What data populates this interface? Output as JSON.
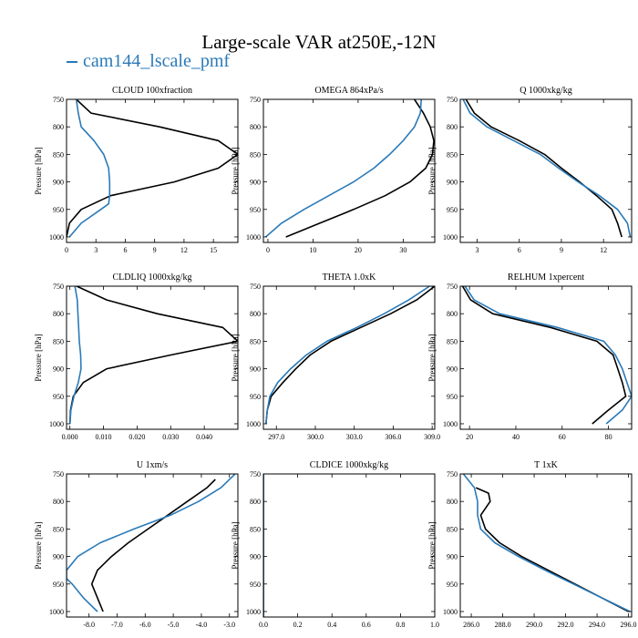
{
  "title": "Large-scale VAR at250E,-12N",
  "legend": {
    "label": "cam144_lscale_pmf",
    "color": "#2a7ab8"
  },
  "colors": {
    "series_black": "#000000",
    "series_blue": "#2a7ab8",
    "axis": "#000000"
  },
  "chart_data": [
    {
      "type": "line",
      "title": "CLOUD  100xfraction",
      "ylabel": "Pressure [hPa]",
      "xlim": [
        0,
        17.5
      ],
      "ylim": [
        1010,
        750
      ],
      "xticks": [
        0,
        3,
        6,
        9,
        12,
        15
      ],
      "xtick_labels": [
        "0",
        "3",
        "6",
        "9",
        "12",
        "15"
      ],
      "yticks": [
        750,
        800,
        850,
        900,
        950,
        1000
      ],
      "ytick_labels": [
        "750",
        "800",
        "850",
        "900",
        "950",
        "1000"
      ],
      "series": [
        {
          "color": "black",
          "p": [
            750,
            775,
            800,
            825,
            850,
            875,
            900,
            925,
            950,
            975,
            1000
          ],
          "x": [
            1.0,
            2.5,
            9.5,
            15.5,
            17.5,
            15.5,
            11.0,
            4.5,
            1.5,
            0.3,
            0.0
          ]
        },
        {
          "color": "blue",
          "p": [
            750,
            775,
            800,
            825,
            850,
            875,
            900,
            925,
            940,
            950,
            975,
            1000
          ],
          "x": [
            1.0,
            1.2,
            1.5,
            2.8,
            3.8,
            4.3,
            4.4,
            4.4,
            4.3,
            3.5,
            1.5,
            0.3
          ]
        }
      ]
    },
    {
      "type": "line",
      "title": "OMEGA  864xPa/s",
      "ylabel": "Pressure [hPa]",
      "xlim": [
        -1,
        37
      ],
      "ylim": [
        1010,
        750
      ],
      "xticks": [
        0,
        10,
        20,
        30
      ],
      "xtick_labels": [
        "0",
        "10",
        "20",
        "30"
      ],
      "yticks": [
        750,
        800,
        850,
        900,
        950,
        1000
      ],
      "ytick_labels": [
        "750",
        "800",
        "850",
        "900",
        "950",
        "1000"
      ],
      "series": [
        {
          "color": "black",
          "p": [
            750,
            775,
            800,
            825,
            850,
            875,
            900,
            925,
            950,
            975,
            1000
          ],
          "x": [
            32.5,
            34.5,
            36.0,
            36.8,
            36.5,
            35.0,
            31.5,
            26.0,
            19.0,
            11.5,
            4.0
          ]
        },
        {
          "color": "blue",
          "p": [
            750,
            775,
            800,
            825,
            850,
            875,
            900,
            925,
            950,
            975,
            1000
          ],
          "x": [
            34.0,
            33.8,
            32.5,
            30.0,
            27.0,
            23.5,
            19.0,
            13.5,
            8.0,
            3.0,
            -0.5
          ]
        }
      ]
    },
    {
      "type": "line",
      "title": "Q  1000xkg/kg",
      "ylabel": "Pressure [hPa]",
      "xlim": [
        1.8,
        14
      ],
      "ylim": [
        1010,
        750
      ],
      "xticks": [
        3,
        6,
        9,
        12
      ],
      "xtick_labels": [
        "3",
        "6",
        "9",
        "12"
      ],
      "yticks": [
        750,
        800,
        850,
        900,
        950,
        1000
      ],
      "ytick_labels": [
        "750",
        "800",
        "850",
        "900",
        "950",
        "1000"
      ],
      "series": [
        {
          "color": "black",
          "p": [
            750,
            775,
            800,
            825,
            850,
            875,
            900,
            925,
            950,
            975,
            1000
          ],
          "x": [
            2.2,
            2.8,
            4.0,
            6.0,
            7.8,
            9.0,
            10.3,
            11.5,
            12.6,
            13.0,
            13.3
          ]
        },
        {
          "color": "blue",
          "p": [
            750,
            775,
            800,
            825,
            850,
            875,
            900,
            925,
            950,
            975,
            1000
          ],
          "x": [
            2.0,
            2.5,
            3.7,
            5.6,
            7.5,
            8.8,
            10.2,
            11.7,
            13.0,
            13.7,
            13.9
          ]
        }
      ]
    },
    {
      "type": "line",
      "title": "CLDLIQ  1000xkg/kg",
      "ylabel": "Pressure [hPa]",
      "xlim": [
        -0.001,
        0.05
      ],
      "ylim": [
        1010,
        750
      ],
      "xticks": [
        0,
        0.01,
        0.02,
        0.03,
        0.04
      ],
      "xtick_labels": [
        "0.000",
        "0.010",
        "0.020",
        "0.030",
        "0.040"
      ],
      "yticks": [
        750,
        800,
        850,
        900,
        950,
        1000
      ],
      "ytick_labels": [
        "750",
        "800",
        "850",
        "900",
        "950",
        "1000"
      ],
      "series": [
        {
          "color": "black",
          "p": [
            750,
            775,
            800,
            825,
            850,
            875,
            900,
            925,
            950,
            975,
            1000
          ],
          "x": [
            0.002,
            0.011,
            0.026,
            0.0455,
            0.05,
            0.03,
            0.011,
            0.004,
            0.001,
            0.0002,
            0.0
          ]
        },
        {
          "color": "blue",
          "p": [
            750,
            775,
            800,
            825,
            850,
            875,
            900,
            925,
            950,
            975,
            1000
          ],
          "x": [
            0.0015,
            0.0022,
            0.0024,
            0.0026,
            0.0028,
            0.0032,
            0.0033,
            0.0025,
            0.0012,
            0.0003,
            0.0
          ]
        }
      ]
    },
    {
      "type": "line",
      "title": "THETA  1.0xK",
      "ylabel": "Pressure [hPa]",
      "xlim": [
        296,
        309.2
      ],
      "ylim": [
        1010,
        750
      ],
      "xticks": [
        297,
        300,
        303,
        306,
        309
      ],
      "xtick_labels": [
        "297.0",
        "300.0",
        "303.0",
        "306.0",
        "309.0"
      ],
      "yticks": [
        750,
        800,
        850,
        900,
        950,
        1000
      ],
      "ytick_labels": [
        "750",
        "800",
        "850",
        "900",
        "950",
        "1000"
      ],
      "series": [
        {
          "color": "black",
          "p": [
            750,
            775,
            800,
            825,
            850,
            875,
            900,
            925,
            950,
            975,
            1000
          ],
          "x": [
            309.2,
            307.8,
            305.8,
            303.5,
            301.2,
            299.6,
            298.5,
            297.5,
            296.6,
            296.3,
            296.2
          ]
        },
        {
          "color": "blue",
          "p": [
            750,
            775,
            800,
            825,
            850,
            875,
            900,
            925,
            950,
            975,
            1000
          ],
          "x": [
            308.8,
            307.2,
            305.3,
            303.2,
            300.9,
            299.3,
            298.1,
            297.1,
            296.5,
            296.3,
            296.2
          ]
        }
      ]
    },
    {
      "type": "line",
      "title": "RELHUM  1xpercent",
      "ylabel": "Pressure [hPa]",
      "xlim": [
        16,
        90
      ],
      "ylim": [
        1010,
        750
      ],
      "xticks": [
        20,
        40,
        60,
        80
      ],
      "xtick_labels": [
        "20",
        "40",
        "60",
        "80"
      ],
      "yticks": [
        750,
        800,
        850,
        900,
        950,
        1000
      ],
      "ytick_labels": [
        "750",
        "800",
        "850",
        "900",
        "950",
        "1000"
      ],
      "series": [
        {
          "color": "black",
          "p": [
            750,
            775,
            800,
            825,
            850,
            875,
            900,
            925,
            950,
            975,
            1000
          ],
          "x": [
            17.0,
            20.5,
            30.0,
            55.0,
            75.0,
            82.0,
            84.0,
            86.0,
            87.5,
            80.0,
            73.0
          ]
        },
        {
          "color": "blue",
          "p": [
            750,
            775,
            800,
            825,
            850,
            875,
            900,
            925,
            950,
            975,
            1000
          ],
          "x": [
            18.0,
            22.0,
            33.0,
            58.0,
            78.0,
            83.0,
            86.0,
            88.0,
            90.0,
            86.0,
            79.0
          ]
        }
      ]
    },
    {
      "type": "line",
      "title": "U  1xm/s",
      "ylabel": "Pressure [hPa]",
      "xlim": [
        -8.8,
        -2.7
      ],
      "ylim": [
        1010,
        750
      ],
      "xticks": [
        -8,
        -7,
        -6,
        -5,
        -4,
        -3
      ],
      "xtick_labels": [
        "-8.0",
        "-7.0",
        "-6.0",
        "-5.0",
        "-4.0",
        "-3.0"
      ],
      "yticks": [
        750,
        800,
        850,
        900,
        950,
        1000
      ],
      "ytick_labels": [
        "750",
        "800",
        "850",
        "900",
        "950",
        "1000"
      ],
      "series": [
        {
          "color": "black",
          "p": [
            760,
            775,
            800,
            825,
            850,
            875,
            900,
            925,
            950,
            975,
            1000
          ],
          "x": [
            -3.5,
            -3.8,
            -4.5,
            -5.2,
            -5.9,
            -6.6,
            -7.2,
            -7.7,
            -7.9,
            -7.7,
            -7.5
          ]
        },
        {
          "color": "blue",
          "p": [
            750,
            775,
            800,
            825,
            850,
            875,
            900,
            925,
            940,
            950,
            975,
            1000
          ],
          "x": [
            -2.8,
            -3.3,
            -4.1,
            -5.1,
            -6.4,
            -7.6,
            -8.4,
            -8.8,
            -8.8,
            -8.6,
            -8.2,
            -7.7
          ]
        }
      ]
    },
    {
      "type": "line",
      "title": "CLDICE  1000xkg/kg",
      "ylabel": "Pressure [hPa]",
      "xlim": [
        0,
        1.0
      ],
      "ylim": [
        1010,
        750
      ],
      "xticks": [
        0,
        0.2,
        0.4,
        0.6,
        0.8,
        1.0
      ],
      "xtick_labels": [
        "0.0",
        "0.2",
        "0.4",
        "0.6",
        "0.8",
        "1.0"
      ],
      "yticks": [
        750,
        800,
        850,
        900,
        950,
        1000
      ],
      "ytick_labels": [
        "750",
        "800",
        "850",
        "900",
        "950",
        "1000"
      ],
      "series": [
        {
          "color": "black",
          "p": [
            750,
            1010
          ],
          "x": [
            0.0,
            0.0
          ]
        },
        {
          "color": "blue",
          "p": [
            750,
            1010
          ],
          "x": [
            0.0,
            0.0
          ]
        }
      ]
    },
    {
      "type": "line",
      "title": "T  1xK",
      "ylabel": "Pressure [hPa]",
      "xlim": [
        285.3,
        296.2
      ],
      "ylim": [
        1010,
        750
      ],
      "xticks": [
        286,
        288,
        290,
        292,
        294,
        296
      ],
      "xtick_labels": [
        "286.0",
        "288.0",
        "290.0",
        "292.0",
        "294.0",
        "296.0"
      ],
      "yticks": [
        750,
        800,
        850,
        900,
        950,
        1000
      ],
      "ytick_labels": [
        "750",
        "800",
        "850",
        "900",
        "950",
        "1000"
      ],
      "series": [
        {
          "color": "black",
          "p": [
            775,
            785,
            800,
            825,
            850,
            875,
            900,
            925,
            950,
            975,
            1000
          ],
          "x": [
            286.3,
            287.1,
            287.2,
            286.6,
            286.9,
            287.8,
            289.2,
            290.9,
            292.6,
            294.3,
            296.0
          ]
        },
        {
          "color": "blue",
          "p": [
            750,
            775,
            800,
            825,
            850,
            875,
            900,
            925,
            950,
            975,
            1000
          ],
          "x": [
            285.5,
            286.2,
            286.4,
            286.4,
            286.6,
            287.5,
            289.0,
            290.7,
            292.5,
            294.3,
            296.1
          ]
        }
      ]
    }
  ]
}
